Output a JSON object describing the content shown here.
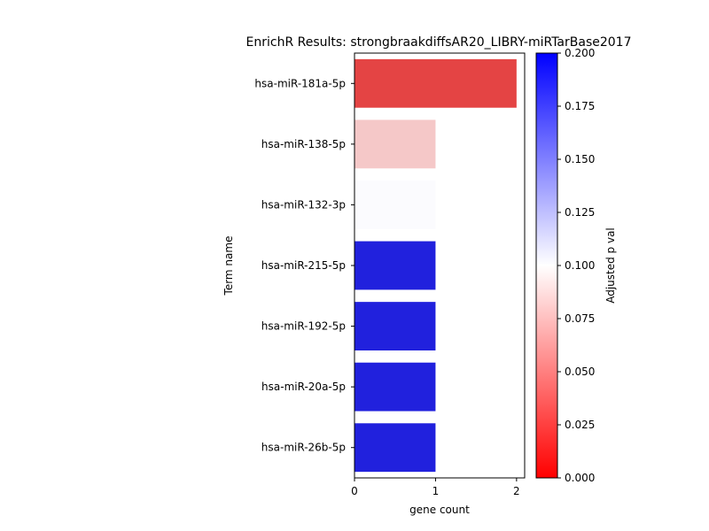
{
  "chart_data": {
    "type": "bar",
    "orientation": "horizontal",
    "title": "EnrichR Results: strongbraakdiffsAR20_LIBRY-miRTarBase2017",
    "xlabel": "gene count",
    "ylabel": "Term name",
    "xlim": [
      0,
      2.1
    ],
    "xticks": [
      "0",
      "1",
      "2"
    ],
    "categories": [
      "hsa-miR-181a-5p",
      "hsa-miR-138-5p",
      "hsa-miR-132-3p",
      "hsa-miR-215-5p",
      "hsa-miR-192-5p",
      "hsa-miR-20a-5p",
      "hsa-miR-26b-5p"
    ],
    "values": [
      2,
      1,
      1,
      1,
      1,
      1,
      1
    ],
    "colors": [
      "#e44444",
      "#f5c8c8",
      "#fbfbfe",
      "#2121dd",
      "#2121dd",
      "#2121dd",
      "#2121dd"
    ],
    "colorbar": {
      "label": "Adjusted p val",
      "range": [
        0,
        0.2
      ],
      "ticks": [
        "0.000",
        "0.025",
        "0.050",
        "0.075",
        "0.100",
        "0.125",
        "0.150",
        "0.175",
        "0.200"
      ],
      "low_color": "#ff0000",
      "mid_color": "#ffffff",
      "high_color": "#0000ff"
    }
  }
}
